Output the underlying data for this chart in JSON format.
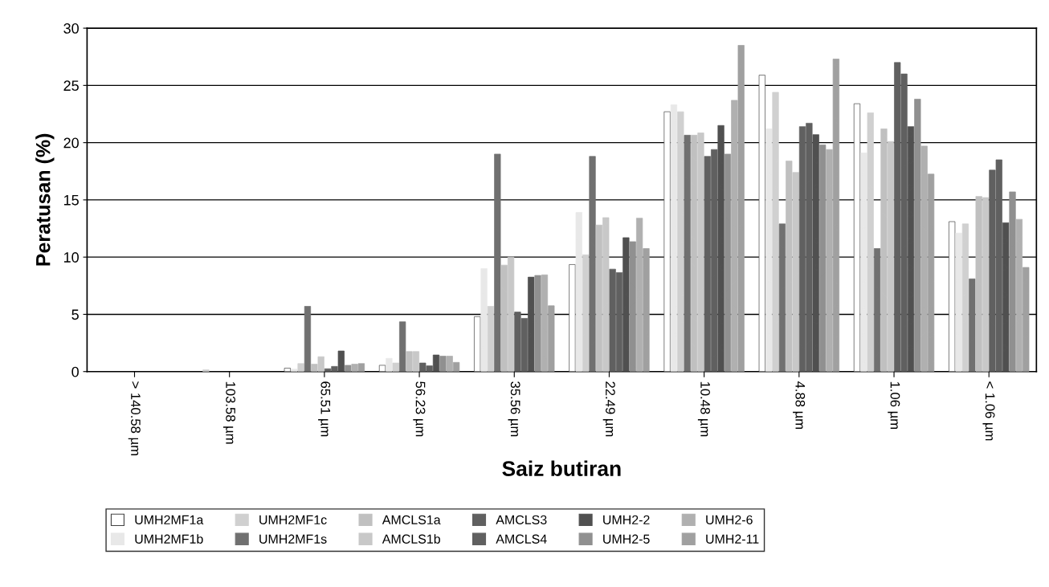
{
  "chart_data": {
    "type": "bar",
    "xlabel": "Saiz butiran",
    "ylabel": "Peratusan (%)",
    "categories": [
      "> 140.58 µm",
      "103.58 µm",
      "65.51 µm",
      "56.23 µm",
      "35.56 µm",
      "22.49 µm",
      "10.48 µm",
      "4.88 µm",
      "1.06 µm",
      "< 1.06 µm"
    ],
    "series": [
      {
        "name": "UMH2MF1a",
        "color": "#ffffff",
        "values": [
          0,
          0,
          0.3,
          0.55,
          4.8,
          9.35,
          22.7,
          25.9,
          23.4,
          13.1
        ]
      },
      {
        "name": "UMH2MF1b",
        "color": "#e8e8e8",
        "values": [
          0,
          0,
          0.2,
          1.15,
          9.0,
          13.9,
          23.3,
          21.2,
          19.1,
          12.1
        ]
      },
      {
        "name": "UMH2MF1c",
        "color": "#d0d0d0",
        "values": [
          0,
          0.15,
          0.7,
          0.75,
          5.7,
          10.2,
          22.7,
          24.4,
          22.6,
          12.9
        ]
      },
      {
        "name": "UMH2MF1s",
        "color": "#707070",
        "values": [
          0,
          0,
          5.7,
          4.35,
          19.0,
          18.8,
          20.65,
          12.9,
          10.75,
          8.1
        ]
      },
      {
        "name": "AMCLS1a",
        "color": "#c0c0c0",
        "values": [
          0,
          0,
          0.65,
          1.75,
          9.3,
          12.8,
          20.65,
          18.4,
          21.2,
          15.3
        ]
      },
      {
        "name": "AMCLS1b",
        "color": "#c8c8c8",
        "values": [
          0,
          0,
          1.3,
          1.75,
          10.0,
          13.45,
          20.85,
          17.4,
          20.1,
          15.2
        ]
      },
      {
        "name": "AMCLS3",
        "color": "#606060",
        "values": [
          0,
          0,
          0.25,
          0.75,
          5.2,
          8.95,
          18.8,
          21.4,
          27.0,
          17.6
        ]
      },
      {
        "name": "AMCLS4",
        "color": "#606060",
        "values": [
          0,
          0,
          0.45,
          0.5,
          4.65,
          8.65,
          19.4,
          21.7,
          26.0,
          18.5
        ]
      },
      {
        "name": "UMH2-2",
        "color": "#505050",
        "values": [
          0,
          0,
          1.8,
          1.45,
          8.25,
          11.7,
          21.5,
          20.7,
          21.4,
          13.0
        ]
      },
      {
        "name": "UMH2-5",
        "color": "#909090",
        "values": [
          0,
          0,
          0.55,
          1.35,
          8.4,
          11.35,
          19.0,
          19.8,
          23.8,
          15.7
        ]
      },
      {
        "name": "UMH2-6",
        "color": "#b0b0b0",
        "values": [
          0,
          0,
          0.65,
          1.35,
          8.45,
          13.4,
          23.7,
          19.4,
          19.7,
          13.3
        ]
      },
      {
        "name": "UMH2-11",
        "color": "#a0a0a0",
        "values": [
          0,
          0,
          0.7,
          0.8,
          5.75,
          10.75,
          28.5,
          27.3,
          17.25,
          9.1
        ]
      }
    ],
    "ylim": [
      0,
      30
    ],
    "yticks": [
      0,
      5,
      10,
      15,
      20,
      25,
      30
    ],
    "grid": "y",
    "legend": "bottom"
  }
}
